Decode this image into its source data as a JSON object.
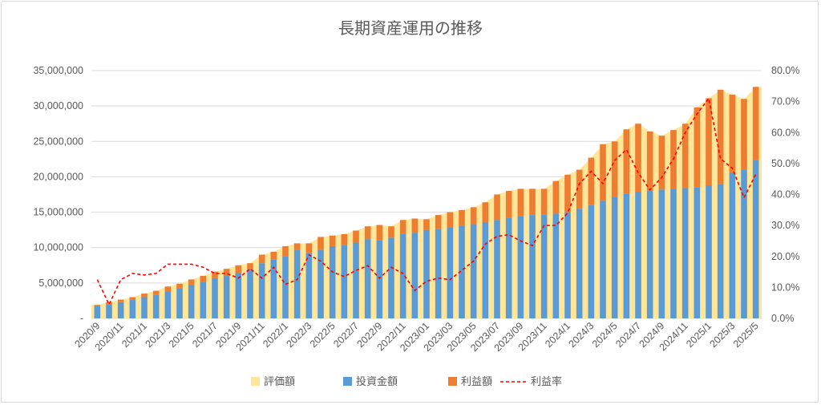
{
  "chart_data": {
    "type": "bar",
    "title": "長期資産運用の推移",
    "categories": [
      "2020/9",
      "2020/10",
      "2020/11",
      "2020/12",
      "2021/1",
      "2021/2",
      "2021/3",
      "2021/4",
      "2021/5",
      "2021/6",
      "2021/7",
      "2021/8",
      "2021/9",
      "2021/10",
      "2021/11",
      "2021/12",
      "2022/1",
      "2022/2",
      "2022/3",
      "2022/4",
      "2022/5",
      "2022/6",
      "2022/7",
      "2022/8",
      "2022/9",
      "2022/10",
      "2022/11",
      "2022/12",
      "2023/01",
      "2023/02",
      "2023/03",
      "2023/04",
      "2023/05",
      "2023/06",
      "2023/07",
      "2023/08",
      "2023/09",
      "2023/10",
      "2023/11",
      "2023/12",
      "2024/1",
      "2024/2",
      "2024/3",
      "2024/4",
      "2024/5",
      "2024/6",
      "2024/7",
      "2024/8",
      "2024/9",
      "2024/10",
      "2024/11",
      "2024/12",
      "2025/1",
      "2025/2",
      "2025/3",
      "2025/4",
      "2025/5"
    ],
    "x_tick_labels": [
      "2020/9",
      "2020/11",
      "2021/1",
      "2021/3",
      "2021/5",
      "2021/7",
      "2021/9",
      "2021/11",
      "2022/1",
      "2022/3",
      "2022/5",
      "2022/7",
      "2022/9",
      "2022/11",
      "2023/01",
      "2023/03",
      "2023/05",
      "2023/07",
      "2023/09",
      "2023/11",
      "2024/1",
      "2024/3",
      "2024/5",
      "2024/7",
      "2024/9",
      "2024/11",
      "2025/1",
      "2025/3",
      "2025/5"
    ],
    "series": [
      {
        "name": "評価額",
        "type": "area",
        "axis": "left",
        "color": "#ffe699",
        "values": [
          1900000,
          2300000,
          2650000,
          3000000,
          3500000,
          3900000,
          4500000,
          4900000,
          5500000,
          6000000,
          6600000,
          7000000,
          7500000,
          7800000,
          9000000,
          9400000,
          10200000,
          10600000,
          10600000,
          11500000,
          11700000,
          11900000,
          12400000,
          13000000,
          13200000,
          13000000,
          13900000,
          14100000,
          14000000,
          14600000,
          15000000,
          15300000,
          15700000,
          16400000,
          17500000,
          18000000,
          18300000,
          18300000,
          18300000,
          19400000,
          20300000,
          21000000,
          22700000,
          24600000,
          25000000,
          26700000,
          27500000,
          26400000,
          25800000,
          26600000,
          27500000,
          29800000,
          31100000,
          32300000,
          31600000,
          31000000,
          32700000
        ]
      },
      {
        "name": "投資金額",
        "type": "bar",
        "axis": "left",
        "color": "#5b9bd5",
        "values": [
          1700000,
          2000000,
          2300000,
          2600000,
          3000000,
          3300000,
          3800000,
          4200000,
          4700000,
          5100000,
          5700000,
          6000000,
          6400000,
          6900000,
          7800000,
          8300000,
          8800000,
          9700000,
          9200000,
          9700000,
          10200000,
          10400000,
          10700000,
          11200000,
          11000000,
          11400000,
          11900000,
          12100000,
          12500000,
          12600000,
          12900000,
          13100000,
          13300000,
          13600000,
          13900000,
          14200000,
          14400000,
          14600000,
          14700000,
          14800000,
          15000000,
          15500000,
          16000000,
          16600000,
          17200000,
          17600000,
          17900000,
          18000000,
          18200000,
          18300000,
          18400000,
          18500000,
          18800000,
          19000000,
          20500000,
          21000000,
          22400000
        ]
      },
      {
        "name": "利益額",
        "type": "bar",
        "axis": "left",
        "color": "#ed7d31",
        "values": [
          200000,
          300000,
          350000,
          400000,
          500000,
          600000,
          700000,
          700000,
          800000,
          900000,
          900000,
          1000000,
          1100000,
          900000,
          1200000,
          1100000,
          1400000,
          900000,
          1400000,
          1800000,
          1500000,
          1500000,
          1700000,
          1800000,
          2200000,
          1600000,
          2000000,
          2000000,
          1500000,
          2000000,
          2100000,
          2200000,
          2400000,
          2800000,
          3600000,
          3800000,
          3900000,
          3700000,
          3600000,
          4600000,
          5300000,
          5500000,
          6700000,
          8000000,
          7800000,
          9100000,
          9600000,
          8400000,
          7600000,
          8300000,
          9100000,
          11300000,
          12300000,
          13300000,
          11100000,
          10000000,
          10300000
        ]
      },
      {
        "name": "利益率",
        "type": "line",
        "axis": "right",
        "color": "#ff0000",
        "dash": true,
        "values": [
          12.5,
          4.5,
          12.5,
          14.5,
          14.0,
          14.5,
          17.5,
          17.5,
          17.5,
          16.5,
          14.5,
          14.5,
          13.0,
          16.0,
          13.0,
          16.5,
          11.0,
          12.5,
          20.5,
          18.5,
          15.0,
          13.5,
          15.5,
          17.0,
          13.0,
          16.5,
          14.5,
          9.0,
          12.0,
          13.0,
          12.5,
          15.5,
          18.5,
          24.0,
          26.5,
          27.0,
          25.0,
          23.5,
          30.0,
          30.0,
          34.0,
          43.5,
          47.5,
          43.5,
          51.0,
          54.5,
          47.0,
          41.5,
          45.5,
          51.5,
          60.0,
          66.0,
          71.0,
          51.5,
          48.5,
          39.0,
          46.5
        ]
      }
    ],
    "y_left": {
      "min": 0,
      "max": 35000000,
      "step": 5000000,
      "tick_labels": [
        "-",
        "5,000,000",
        "10,000,000",
        "15,000,000",
        "20,000,000",
        "25,000,000",
        "30,000,000",
        "35,000,000"
      ]
    },
    "y_right": {
      "min": 0,
      "max": 80,
      "step": 10,
      "tick_labels": [
        "0.0%",
        "10.0%",
        "20.0%",
        "30.0%",
        "40.0%",
        "50.0%",
        "60.0%",
        "70.0%",
        "80.0%"
      ]
    },
    "grid": true,
    "legend_position": "bottom"
  }
}
